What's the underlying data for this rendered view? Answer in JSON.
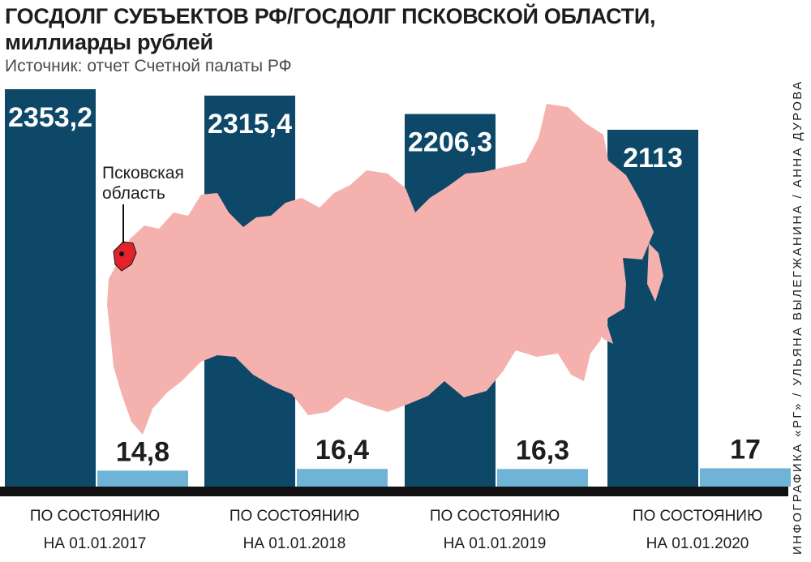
{
  "header": {
    "title_line1": "ГОСДОЛГ СУБЪЕКТОВ РФ/ГОСДОЛГ ПСКОВСКОЙ ОБЛАСТИ,",
    "title_line2": "миллиарды рублей",
    "source": "Источник: отчет Счетной палаты РФ"
  },
  "credit": "ИНФОГРАФИКА «РГ» / УЛЬЯНА ВЫЛЕГЖАНИНА / АННА ДУРОВА",
  "map": {
    "region_label_line1": "Псковская",
    "region_label_line2": "область",
    "fill_color": "#f4b1ae",
    "region_color": "#e2232b"
  },
  "colors": {
    "dark_bar": "#0d4868",
    "light_bar": "#6fb4d6",
    "baseline": "#111111"
  },
  "chart_data": {
    "type": "bar",
    "categories": [
      [
        "ПО СОСТОЯНИЮ",
        "НА 01.01.2017"
      ],
      [
        "ПО СОСТОЯНИЮ",
        "НА 01.01.2018"
      ],
      [
        "ПО СОСТОЯНИЮ",
        "НА 01.01.2019"
      ],
      [
        "ПО СОСТОЯНИЮ",
        "НА 01.01.2020"
      ]
    ],
    "series": [
      {
        "values": [
          2353.2,
          2315.4,
          2206.3,
          2113
        ],
        "labels": [
          "2353,2",
          "2315,4",
          "2206,3",
          "2113"
        ]
      },
      {
        "values": [
          14.8,
          16.4,
          16.3,
          17
        ],
        "labels": [
          "14,8",
          "16,4",
          "16,3",
          "17"
        ]
      }
    ],
    "title": "ГОСДОЛГ СУБЪЕКТОВ РФ/ГОСДОЛГ ПСКОВСКОЙ ОБЛАСТИ, миллиарды рублей"
  }
}
